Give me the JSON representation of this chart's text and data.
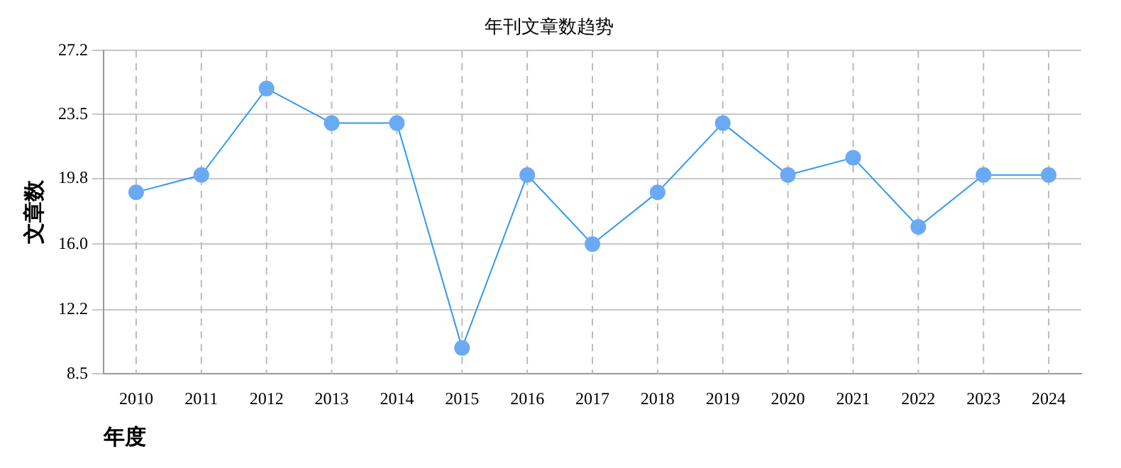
{
  "chart_data": {
    "type": "line",
    "title": "年刊文章数趋势",
    "xlabel": "年度",
    "ylabel": "文章数",
    "categories": [
      "2010",
      "2011",
      "2012",
      "2013",
      "2014",
      "2015",
      "2016",
      "2017",
      "2018",
      "2019",
      "2020",
      "2021",
      "2022",
      "2023",
      "2024"
    ],
    "series": [
      {
        "color": "#3399ee",
        "values": [
          19,
          20,
          25,
          23,
          23,
          10,
          20,
          16,
          19,
          23,
          20,
          21,
          17,
          20,
          20
        ]
      }
    ],
    "ylim": [
      8.5,
      27.2
    ],
    "yticks": [
      8.5,
      12.2,
      {
        "value": 16,
        "label": "16.0"
      },
      19.8,
      23.5,
      27.2
    ],
    "grid": true,
    "marker": "circle",
    "line_style": "solid"
  }
}
